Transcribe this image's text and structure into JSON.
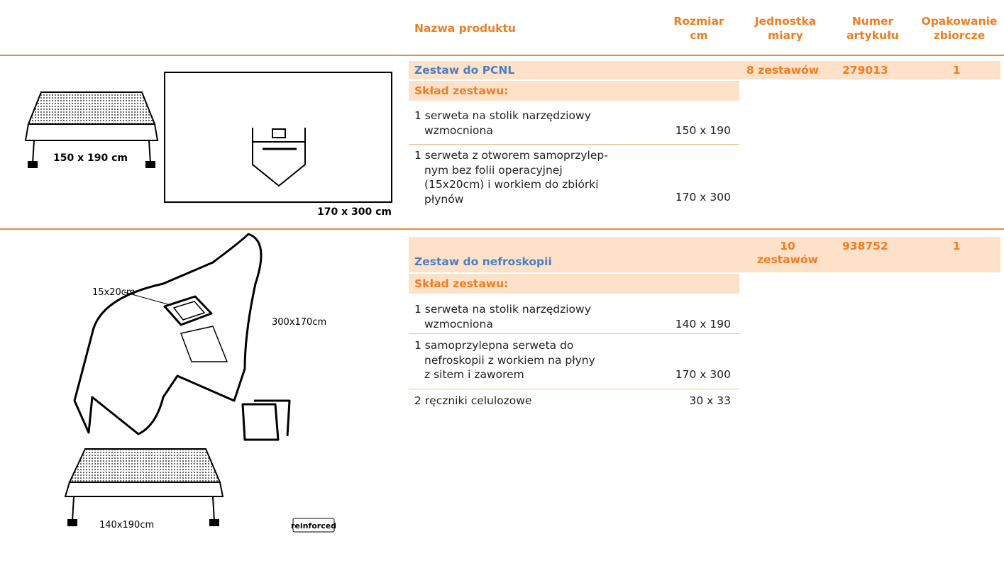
{
  "header": {
    "columns": [
      [
        "Nazwa produktu"
      ],
      [
        "Rozmiar",
        "cm"
      ],
      [
        "Jednostka",
        "miary"
      ],
      [
        "Numer",
        "artykułu"
      ],
      [
        "Opakowanie",
        "zbiorcze"
      ]
    ]
  },
  "products": [
    {
      "name": "Zestaw do PCNL",
      "unit": [
        "8 zestawów"
      ],
      "article": "279013",
      "pack": "1",
      "composition_label": "Skład zestawu:",
      "items": [
        {
          "lines": [
            "1 serweta na stolik narzędziowy",
            "wzmocniona"
          ],
          "size": "150 x 190"
        },
        {
          "lines": [
            "1 serweta  z otworem samoprzylep-",
            "nym bez folii operacyjnej",
            "(15x20cm) i workiem do zbiórki",
            "płynów"
          ],
          "size": "170 x 300"
        }
      ],
      "illustration_labels": [
        "150 x 190 cm",
        "170 x 300 cm"
      ]
    },
    {
      "name": "Zestaw do nefroskopii",
      "unit": [
        "10",
        "zestawów"
      ],
      "article": "938752",
      "pack": "1",
      "composition_label": "Skład zestawu:",
      "items": [
        {
          "lines": [
            "1 serweta na stolik narzędziowy",
            "wzmocniona"
          ],
          "size": "140 x 190"
        },
        {
          "lines": [
            "1 samoprzylepna serweta do",
            "nefroskopii z workiem na płyny",
            "z sitem i zaworem"
          ],
          "size": "170 x 300"
        },
        {
          "lines": [
            "2 ręczniki celulozowe"
          ],
          "size": "30 x 33"
        }
      ],
      "illustration_labels": [
        "15x20cm",
        "300x170cm",
        "140x190cm",
        "reinforced"
      ]
    }
  ]
}
